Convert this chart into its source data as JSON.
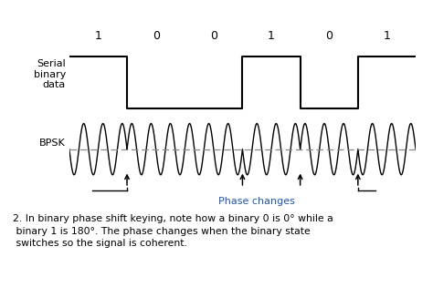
{
  "bits": [
    1,
    0,
    0,
    1,
    0,
    1
  ],
  "bit_duration": 1.0,
  "carrier_freq": 3,
  "serial_label": "Serial\nbinary\ndata",
  "bpsk_label": "BPSK",
  "phase_changes_label": "Phase changes",
  "caption_line1": "2. In binary phase shift keying, note how a binary 0 is 0° while a",
  "caption_line2": " binary 1 is 180°. The phase changes when the binary state",
  "caption_line3": " switches so the signal is coherent.",
  "waveform_color": "#000000",
  "dashed_color": "#888888",
  "background_color": "#ffffff",
  "arrow_color": "#000000",
  "label_color": "#000000",
  "bpsk_label_color": "#000000",
  "phase_label_color": "#2255aa"
}
